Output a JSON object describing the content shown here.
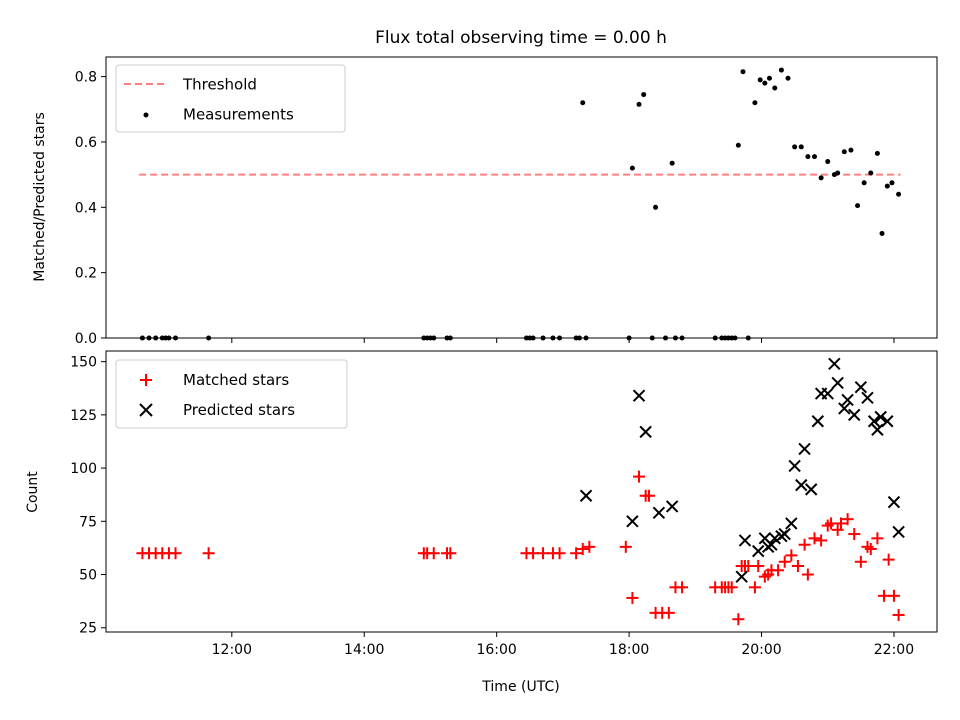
{
  "figure": {
    "title": "Flux total observing time = 0.00 h",
    "xlabel": "Time (UTC)",
    "colors": {
      "threshold": "#ff7f7f",
      "measurements": "#000000",
      "matched": "#ff0000",
      "predicted": "#000000"
    }
  },
  "chart_data": [
    {
      "type": "scatter",
      "ylabel": "Matched/Predicted stars",
      "xlim": [
        10.1,
        22.65
      ],
      "ylim": [
        0,
        0.86
      ],
      "yticks": [
        0.0,
        0.2,
        0.4,
        0.6,
        0.8
      ],
      "ytick_labels": [
        "0.0",
        "0.2",
        "0.4",
        "0.6",
        "0.8"
      ],
      "legend_position": "top-left",
      "series": [
        {
          "name": "Threshold",
          "style": "dashed-line",
          "x": [
            10.6,
            22.1
          ],
          "y": [
            0.5,
            0.5
          ]
        },
        {
          "name": "Measurements",
          "style": "dot",
          "x": [
            10.65,
            10.75,
            10.85,
            10.95,
            11.0,
            11.05,
            11.15,
            11.65,
            14.9,
            14.95,
            15.0,
            15.05,
            15.25,
            15.3,
            16.45,
            16.5,
            16.55,
            16.7,
            16.85,
            16.95,
            17.2,
            17.25,
            17.35,
            18.0,
            18.35,
            18.55,
            18.7,
            18.8,
            19.3,
            19.4,
            19.45,
            19.5,
            19.55,
            19.6,
            19.8,
            17.3,
            18.05,
            18.15,
            18.22,
            18.4,
            18.65,
            19.65,
            19.72,
            19.9,
            19.98,
            20.05,
            20.12,
            20.2,
            20.3,
            20.4,
            20.5,
            20.6,
            20.7,
            20.8,
            20.9,
            21.0,
            21.1,
            21.15,
            21.25,
            21.35,
            21.45,
            21.55,
            21.65,
            21.75,
            21.82,
            21.9,
            21.97,
            22.07
          ],
          "y": [
            0,
            0,
            0,
            0,
            0,
            0,
            0,
            0,
            0,
            0,
            0,
            0,
            0,
            0,
            0,
            0,
            0,
            0,
            0,
            0,
            0,
            0,
            0,
            0,
            0,
            0,
            0,
            0,
            0,
            0,
            0,
            0,
            0,
            0,
            0,
            0.72,
            0.52,
            0.715,
            0.745,
            0.4,
            0.535,
            0.59,
            0.815,
            0.72,
            0.79,
            0.78,
            0.795,
            0.765,
            0.82,
            0.795,
            0.585,
            0.585,
            0.555,
            0.555,
            0.49,
            0.54,
            0.5,
            0.505,
            0.57,
            0.575,
            0.405,
            0.475,
            0.505,
            0.565,
            0.32,
            0.465,
            0.475,
            0.44
          ]
        }
      ]
    },
    {
      "type": "scatter",
      "ylabel": "Count",
      "xlim": [
        10.1,
        22.65
      ],
      "ylim": [
        23,
        155
      ],
      "yticks": [
        25,
        50,
        75,
        100,
        125,
        150
      ],
      "ytick_labels": [
        "25",
        "50",
        "75",
        "100",
        "125",
        "150"
      ],
      "xticks": [
        12,
        14,
        16,
        18,
        20,
        22
      ],
      "xtick_labels": [
        "12:00",
        "14:00",
        "16:00",
        "18:00",
        "20:00",
        "22:00"
      ],
      "legend_position": "top-left",
      "series": [
        {
          "name": "Matched stars",
          "style": "plus",
          "x": [
            10.65,
            10.75,
            10.85,
            10.95,
            11.05,
            11.15,
            11.65,
            14.9,
            14.95,
            15.05,
            15.25,
            15.3,
            16.45,
            16.55,
            16.7,
            16.85,
            16.95,
            17.2,
            17.3,
            17.4,
            17.95,
            18.05,
            18.15,
            18.25,
            18.3,
            18.4,
            18.5,
            18.6,
            18.7,
            18.8,
            19.3,
            19.4,
            19.45,
            19.5,
            19.55,
            19.65,
            19.7,
            19.75,
            19.8,
            19.9,
            19.95,
            20.05,
            20.1,
            20.15,
            20.25,
            20.35,
            20.45,
            20.55,
            20.65,
            20.7,
            20.8,
            20.9,
            21.0,
            21.05,
            21.15,
            21.2,
            21.3,
            21.4,
            21.5,
            21.6,
            21.65,
            21.75,
            21.85,
            21.92,
            22.0,
            22.07
          ],
          "y": [
            60,
            60,
            60,
            60,
            60,
            60,
            60,
            60,
            60,
            60,
            60,
            60,
            60,
            60,
            60,
            60,
            60,
            60,
            62,
            63,
            63,
            39,
            96,
            87,
            87,
            32,
            32,
            32,
            44,
            44,
            44,
            44,
            44,
            44,
            44,
            29,
            54,
            54,
            54,
            44,
            54,
            49,
            50,
            52,
            52,
            56,
            59,
            54,
            64,
            50,
            67,
            66,
            73,
            74,
            71,
            74,
            76,
            69,
            56,
            63,
            62,
            67,
            40,
            57,
            40,
            31
          ]
        },
        {
          "name": "Predicted stars",
          "style": "x",
          "x": [
            17.35,
            18.05,
            18.15,
            18.25,
            18.45,
            18.65,
            19.7,
            19.75,
            19.95,
            20.05,
            20.1,
            20.15,
            20.2,
            20.3,
            20.35,
            20.45,
            20.5,
            20.6,
            20.65,
            20.75,
            20.85,
            20.9,
            21.0,
            21.1,
            21.15,
            21.25,
            21.3,
            21.4,
            21.5,
            21.6,
            21.7,
            21.75,
            21.8,
            21.9,
            22.0,
            22.07
          ],
          "y": [
            87,
            75,
            134,
            117,
            79,
            82,
            49,
            66,
            61,
            67,
            63,
            64,
            67,
            68,
            69,
            74,
            101,
            92,
            109,
            90,
            122,
            135,
            135,
            149,
            140,
            128,
            132,
            125,
            138,
            133,
            122,
            118,
            124,
            122,
            84,
            70
          ]
        }
      ]
    }
  ]
}
